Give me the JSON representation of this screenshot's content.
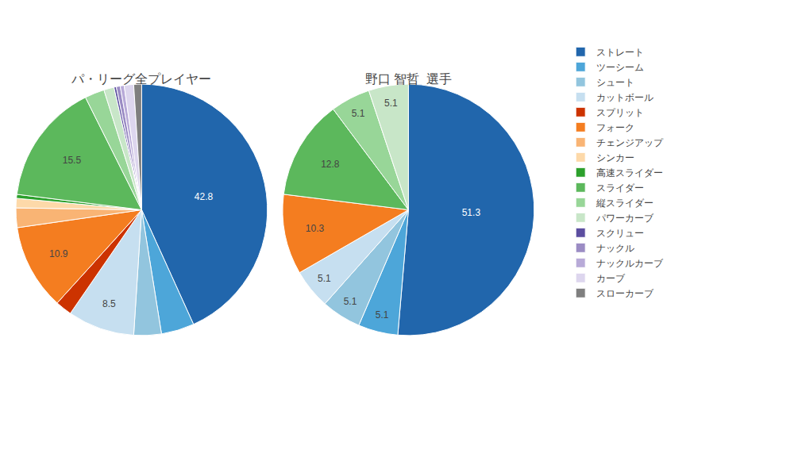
{
  "chart_data": [
    {
      "type": "pie",
      "title": "パ・リーグ全プレイヤー",
      "categories": [
        "ストレート",
        "ツーシーム",
        "シュート",
        "カットボール",
        "スプリット",
        "フォーク",
        "チェンジアップ",
        "シンカー",
        "高速スライダー",
        "スライダー",
        "縦スライダー",
        "パワーカーブ",
        "スクリュー",
        "ナックル",
        "ナックルカーブ",
        "カーブ",
        "スローカーブ"
      ],
      "values": [
        42.8,
        4.2,
        3.5,
        8.5,
        2.1,
        10.9,
        2.5,
        1.2,
        0.5,
        15.5,
        2.5,
        1.3,
        0.3,
        0.5,
        0.5,
        1.2,
        1.0
      ],
      "value_labels": [
        "42.8",
        null,
        null,
        "8.5",
        null,
        "10.9",
        null,
        null,
        null,
        "15.5",
        null,
        null,
        null,
        null,
        null,
        null,
        null
      ],
      "colors": [
        "#2166ac",
        "#4da6d9",
        "#92c5de",
        "#c6dff0",
        "#cc3300",
        "#f47d20",
        "#f9b474",
        "#fdd9a9",
        "#2ca02c",
        "#5cb85c",
        "#98d698",
        "#c8e6c8",
        "#5c4ea0",
        "#9b8cc4",
        "#b8aad8",
        "#ddd6ee",
        "#7f7f7f"
      ],
      "legend": "right"
    },
    {
      "type": "pie",
      "title": "野口 智哲  選手",
      "categories": [
        "ストレート",
        "ツーシーム",
        "シュート",
        "カットボール",
        "フォーク",
        "スライダー",
        "縦スライダー",
        "パワーカーブ"
      ],
      "values": [
        51.3,
        5.1,
        5.1,
        5.1,
        10.3,
        12.8,
        5.1,
        5.1
      ],
      "value_labels": [
        "51.3",
        "5.1",
        "5.1",
        "5.1",
        "10.3",
        "12.8",
        "5.1",
        "5.1"
      ],
      "colors": [
        "#2166ac",
        "#4da6d9",
        "#92c5de",
        "#c6dff0",
        "#f47d20",
        "#5cb85c",
        "#98d698",
        "#c8e6c8"
      ],
      "legend": "right"
    }
  ]
}
